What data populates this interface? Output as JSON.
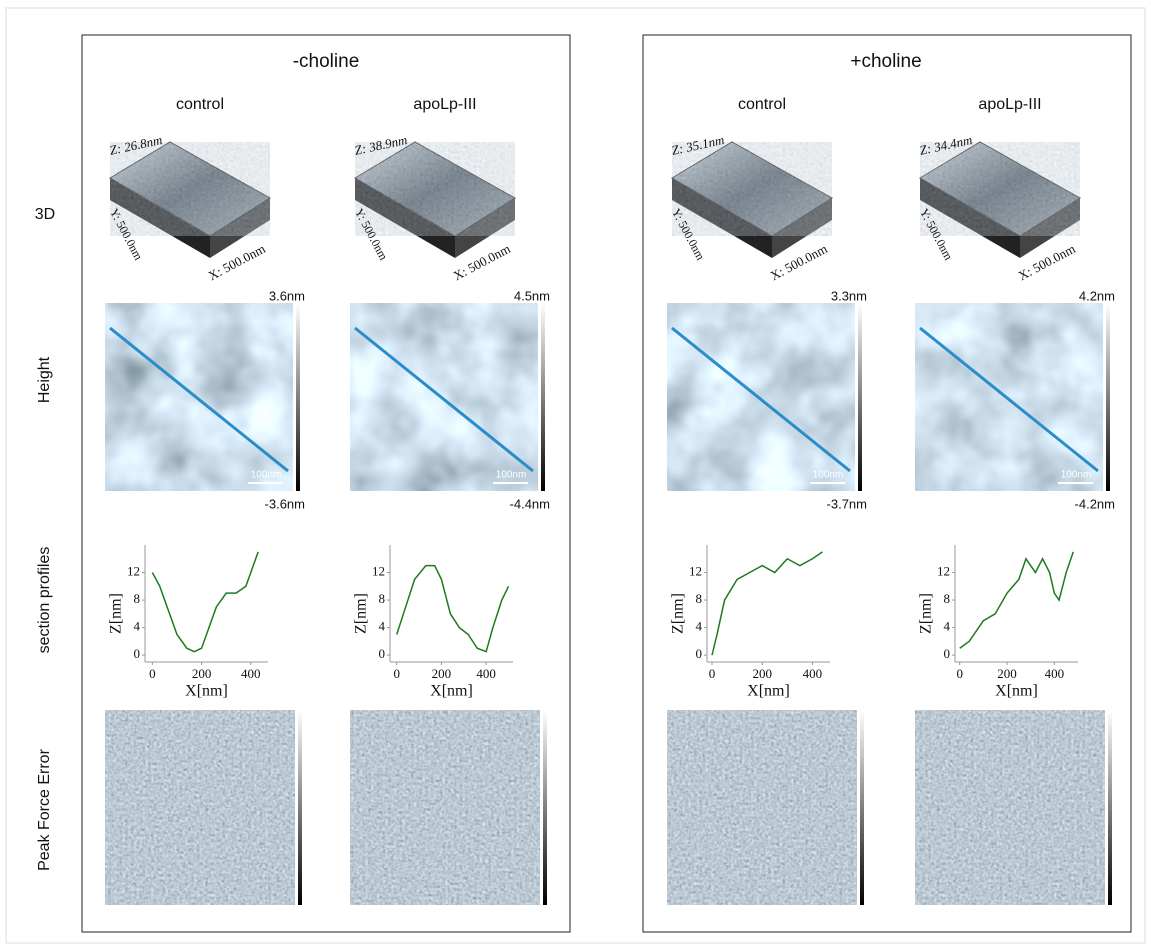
{
  "row_labels": [
    "3D",
    "Height",
    "section profiles",
    "Peak Force Error"
  ],
  "groups": [
    {
      "title": "-choline",
      "columns": [
        {
          "title": "control",
          "z_label": "Z: 26.8nm",
          "y_label": "Y: 500.0nm",
          "x_label": "X: 500.0nm",
          "height_max": "3.6nm",
          "height_min": "-3.6nm",
          "scale_bar": "100nm",
          "profile": {
            "y_label": "Z[nm]",
            "x_label": "X[nm]",
            "xlim": [
              -30,
              470
            ],
            "ylim": [
              -1,
              16
            ],
            "xticks": [
              0,
              200,
              400
            ],
            "yticks": [
              0,
              4,
              8,
              12
            ],
            "x": [
              0,
              30,
              60,
              100,
              140,
              170,
              200,
              230,
              260,
              300,
              340,
              380,
              410,
              430
            ],
            "values": [
              12,
              10,
              7,
              3,
              1,
              0.5,
              1,
              4,
              7,
              9,
              9,
              10,
              13,
              15
            ],
            "color": "#1e7a1e"
          }
        },
        {
          "title": "apoLp-III",
          "z_label": "Z: 38.9nm",
          "y_label": "Y: 500.0nm",
          "x_label": "X: 500.0nm",
          "height_max": "4.5nm",
          "height_min": "-4.4nm",
          "scale_bar": "100nm",
          "profile": {
            "y_label": "Z[nm]",
            "x_label": "X[nm]",
            "xlim": [
              -30,
              520
            ],
            "ylim": [
              -1,
              16
            ],
            "xticks": [
              0,
              200,
              400
            ],
            "yticks": [
              0,
              4,
              8,
              12
            ],
            "x": [
              0,
              40,
              80,
              130,
              170,
              200,
              240,
              280,
              320,
              360,
              400,
              430,
              470,
              500
            ],
            "values": [
              3,
              7,
              11,
              13,
              13,
              11,
              6,
              4,
              3,
              1,
              0.5,
              4,
              8,
              10
            ],
            "color": "#1e7a1e"
          }
        }
      ]
    },
    {
      "title": "+choline",
      "columns": [
        {
          "title": "control",
          "z_label": "Z: 35.1nm",
          "y_label": "Y: 500.0nm",
          "x_label": "X: 500.0nm",
          "height_max": "3.3nm",
          "height_min": "-3.7nm",
          "scale_bar": "100nm",
          "profile": {
            "y_label": "Z[nm]",
            "x_label": "X[nm]",
            "xlim": [
              -20,
              470
            ],
            "ylim": [
              -1,
              16
            ],
            "xticks": [
              0,
              200,
              400
            ],
            "yticks": [
              0,
              4,
              8,
              12
            ],
            "x": [
              0,
              20,
              50,
              100,
              150,
              200,
              250,
              300,
              350,
              400,
              440
            ],
            "values": [
              0,
              3,
              8,
              11,
              12,
              13,
              12,
              14,
              13,
              14,
              15
            ],
            "color": "#1e7a1e"
          }
        },
        {
          "title": "apoLp-III",
          "z_label": "Z: 34.4nm",
          "y_label": "Y: 500.0nm",
          "x_label": "X: 500.0nm",
          "height_max": "4.2nm",
          "height_min": "-4.2nm",
          "scale_bar": "100nm",
          "profile": {
            "y_label": "Z[nm]",
            "x_label": "X[nm]",
            "xlim": [
              -20,
              500
            ],
            "ylim": [
              -1,
              16
            ],
            "xticks": [
              0,
              200,
              400
            ],
            "yticks": [
              0,
              4,
              8,
              12
            ],
            "x": [
              0,
              40,
              100,
              150,
              200,
              250,
              280,
              320,
              350,
              380,
              400,
              420,
              450,
              480
            ],
            "values": [
              1,
              2,
              5,
              6,
              9,
              11,
              14,
              12,
              14,
              12,
              9,
              8,
              12,
              15
            ],
            "color": "#1e7a1e"
          }
        }
      ]
    }
  ]
}
